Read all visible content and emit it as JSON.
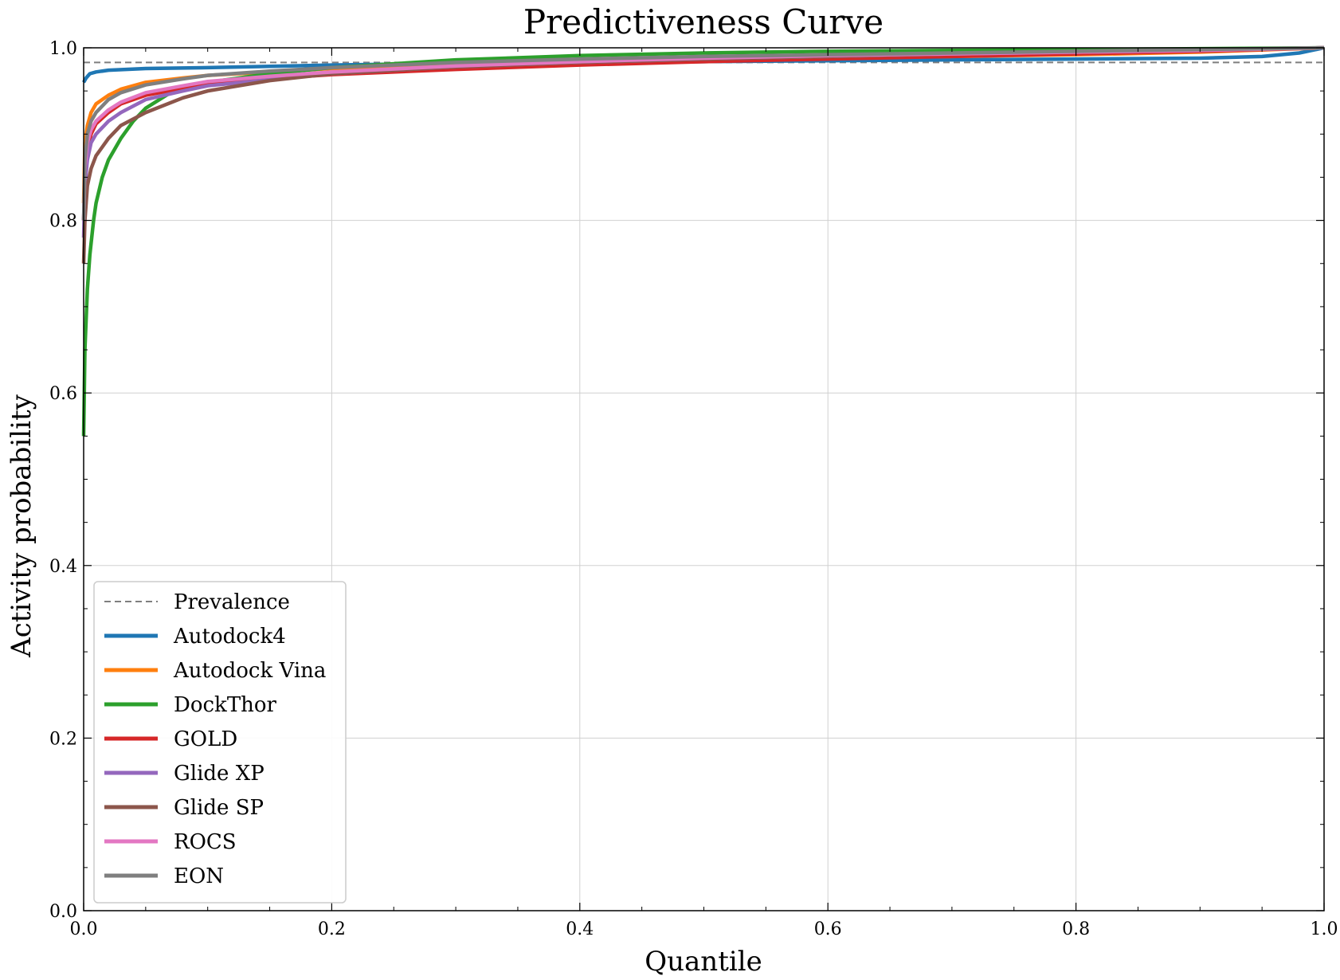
{
  "chart_data": {
    "type": "line",
    "title": "Predictiveness Curve",
    "xlabel": "Quantile",
    "ylabel": "Activity probability",
    "xlim": [
      0.0,
      1.0
    ],
    "ylim": [
      0.0,
      1.0
    ],
    "xticks": [
      "0.0",
      "0.2",
      "0.4",
      "0.6",
      "0.8",
      "1.0"
    ],
    "yticks": [
      "0.0",
      "0.2",
      "0.4",
      "0.6",
      "0.8",
      "1.0"
    ],
    "grid": true,
    "legend_position": "lower-left",
    "prevalence": {
      "name": "Prevalence",
      "value": 0.983,
      "color": "#7f7f7f"
    },
    "series": [
      {
        "name": "Autodock4",
        "color": "#1f77b4",
        "x": [
          0.0,
          0.002,
          0.005,
          0.01,
          0.02,
          0.05,
          0.1,
          0.2,
          0.3,
          0.4,
          0.5,
          0.6,
          0.7,
          0.8,
          0.9,
          0.95,
          0.98,
          1.0
        ],
        "y": [
          0.96,
          0.965,
          0.97,
          0.972,
          0.974,
          0.976,
          0.977,
          0.98,
          0.982,
          0.983,
          0.984,
          0.985,
          0.986,
          0.987,
          0.988,
          0.99,
          0.994,
          1.0
        ]
      },
      {
        "name": "Autodock Vina",
        "color": "#ff7f0e",
        "x": [
          0.0,
          0.001,
          0.003,
          0.006,
          0.01,
          0.02,
          0.03,
          0.05,
          0.08,
          0.1,
          0.15,
          0.2,
          0.3,
          0.4,
          0.5,
          0.6,
          0.7,
          0.8,
          0.9,
          1.0
        ],
        "y": [
          0.82,
          0.89,
          0.91,
          0.925,
          0.935,
          0.945,
          0.952,
          0.96,
          0.965,
          0.968,
          0.972,
          0.976,
          0.98,
          0.983,
          0.986,
          0.988,
          0.99,
          0.992,
          0.995,
          1.0
        ]
      },
      {
        "name": "DockThor",
        "color": "#2ca02c",
        "x": [
          0.0,
          0.001,
          0.003,
          0.005,
          0.008,
          0.01,
          0.015,
          0.02,
          0.03,
          0.04,
          0.05,
          0.07,
          0.1,
          0.15,
          0.2,
          0.3,
          0.4,
          0.5,
          0.6,
          0.7,
          0.8,
          0.9,
          1.0
        ],
        "y": [
          0.55,
          0.65,
          0.72,
          0.76,
          0.8,
          0.82,
          0.85,
          0.87,
          0.895,
          0.915,
          0.93,
          0.948,
          0.96,
          0.97,
          0.977,
          0.986,
          0.991,
          0.994,
          0.996,
          0.997,
          0.998,
          0.999,
          1.0
        ]
      },
      {
        "name": "GOLD",
        "color": "#d62728",
        "x": [
          0.0,
          0.001,
          0.003,
          0.006,
          0.01,
          0.02,
          0.03,
          0.05,
          0.08,
          0.1,
          0.15,
          0.2,
          0.3,
          0.4,
          0.5,
          0.6,
          0.7,
          0.8,
          0.9,
          1.0
        ],
        "y": [
          0.8,
          0.85,
          0.88,
          0.9,
          0.912,
          0.925,
          0.935,
          0.945,
          0.953,
          0.958,
          0.964,
          0.969,
          0.975,
          0.98,
          0.984,
          0.987,
          0.99,
          0.993,
          0.996,
          1.0
        ]
      },
      {
        "name": "Glide XP",
        "color": "#9467bd",
        "x": [
          0.0,
          0.001,
          0.003,
          0.006,
          0.01,
          0.02,
          0.03,
          0.05,
          0.08,
          0.1,
          0.15,
          0.2,
          0.3,
          0.4,
          0.5,
          0.6,
          0.7,
          0.8,
          0.9,
          1.0
        ],
        "y": [
          0.78,
          0.84,
          0.87,
          0.89,
          0.9,
          0.915,
          0.925,
          0.94,
          0.95,
          0.956,
          0.963,
          0.97,
          0.978,
          0.983,
          0.987,
          0.99,
          0.993,
          0.995,
          0.997,
          1.0
        ]
      },
      {
        "name": "Glide SP",
        "color": "#8c564b",
        "x": [
          0.0,
          0.001,
          0.003,
          0.006,
          0.01,
          0.02,
          0.03,
          0.05,
          0.08,
          0.1,
          0.15,
          0.2,
          0.3,
          0.4,
          0.5,
          0.6,
          0.7,
          0.8,
          0.9,
          1.0
        ],
        "y": [
          0.75,
          0.8,
          0.84,
          0.86,
          0.875,
          0.895,
          0.91,
          0.925,
          0.942,
          0.95,
          0.962,
          0.97,
          0.978,
          0.983,
          0.987,
          0.99,
          0.993,
          0.995,
          0.997,
          1.0
        ]
      },
      {
        "name": "ROCS",
        "color": "#e377c2",
        "x": [
          0.0,
          0.001,
          0.003,
          0.006,
          0.01,
          0.02,
          0.03,
          0.05,
          0.08,
          0.1,
          0.15,
          0.2,
          0.3,
          0.4,
          0.5,
          0.6,
          0.7,
          0.8,
          0.9,
          1.0
        ],
        "y": [
          0.8,
          0.86,
          0.89,
          0.905,
          0.915,
          0.928,
          0.937,
          0.948,
          0.956,
          0.961,
          0.967,
          0.972,
          0.979,
          0.984,
          0.988,
          0.991,
          0.993,
          0.995,
          0.997,
          1.0
        ]
      },
      {
        "name": "EON",
        "color": "#7f7f7f",
        "x": [
          0.0,
          0.001,
          0.003,
          0.006,
          0.01,
          0.02,
          0.03,
          0.05,
          0.08,
          0.1,
          0.15,
          0.2,
          0.3,
          0.4,
          0.5,
          0.6,
          0.7,
          0.8,
          0.9,
          1.0
        ],
        "y": [
          0.8,
          0.87,
          0.9,
          0.915,
          0.925,
          0.94,
          0.948,
          0.957,
          0.964,
          0.968,
          0.973,
          0.977,
          0.983,
          0.987,
          0.99,
          0.992,
          0.994,
          0.996,
          0.998,
          1.0
        ]
      }
    ]
  }
}
